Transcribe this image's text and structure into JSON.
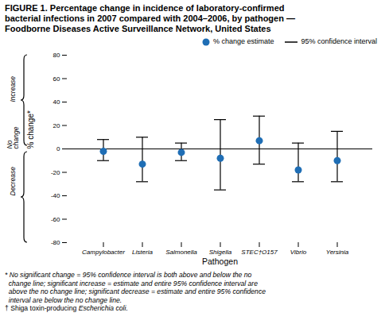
{
  "chart_data": {
    "type": "scatter",
    "title": [
      "FIGURE 1. Percentage change in incidence of laboratory-confirmed",
      "bacterial infections in 2007 compared with 2004–2006, by pathogen —",
      "Foodborne Diseases Active Surveillance Network, United States"
    ],
    "xlabel": "Pathogen",
    "ylabel": "% change*",
    "categories": [
      "Campylobacter",
      "Listeria",
      "Salmonella",
      "Shigella",
      "STEC†O157",
      "Vibrio",
      "Yersinia"
    ],
    "series": [
      {
        "name": "% change estimate",
        "color": "#1f6eb5",
        "values": [
          -2,
          -13,
          -3,
          -8,
          7,
          -18,
          -10
        ],
        "ci_low": [
          -10,
          -28,
          -10,
          -35,
          -13,
          -28,
          -28
        ],
        "ci_high": [
          8,
          10,
          5,
          25,
          28,
          5,
          15
        ],
        "ci_name": "95% confidence interval"
      }
    ],
    "ylim": [
      -80,
      80
    ],
    "yticks": [
      -80,
      -60,
      -40,
      -20,
      0,
      20,
      40,
      60,
      80
    ],
    "reference_line": 0,
    "side_labels": [
      "Increase",
      "No\nchange",
      "Decrease"
    ],
    "footnotes": [
      "* No significant change = 95% confidence interval is both above and below the no",
      "  change line; significant increase = estimate and entire 95% confidence interval are",
      "  above the no change line; significant decrease = estimate and entire 95% confidence",
      "  interval are below the no change line.",
      [
        "† Shiga toxin-producing ",
        "Escherichia coli."
      ]
    ],
    "legend": "top-right",
    "grid": false
  }
}
